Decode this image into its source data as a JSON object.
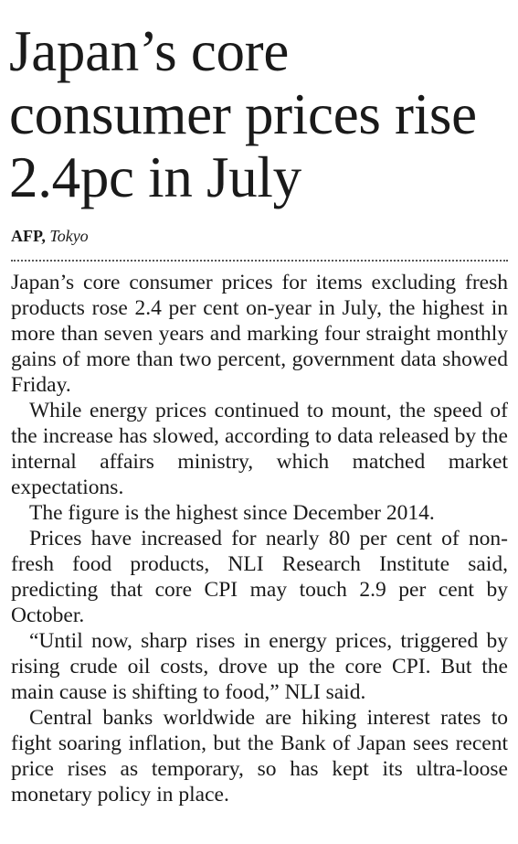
{
  "headline": "Japan’s core consumer prices rise 2.4pc in July",
  "byline": {
    "source": "AFP,",
    "location": "Tokyo"
  },
  "paragraphs": [
    "Japan’s core consumer prices for items excluding fresh products rose 2.4 per cent on-year in July, the highest in more than seven years and marking four straight monthly gains of more than two percent, government data showed Friday.",
    "While energy prices continued to mount, the speed of the increase has slowed, according to data released by the internal affairs ministry, which matched market expectations.",
    "The figure is the highest since December 2014.",
    "Prices have increased for nearly 80 per cent of non-fresh food products, NLI Research Institute said, predicting that core CPI may touch 2.9 per cent by October.",
    "“Until now, sharp rises in energy prices, triggered by rising crude oil costs, drove up the core CPI. But the main cause is shifting to food,” NLI said.",
    "Central banks worldwide are hiking interest rates to fight soaring inflation, but the Bank of Japan sees recent price rises as temporary, so has kept its ultra-loose monetary policy in place."
  ]
}
